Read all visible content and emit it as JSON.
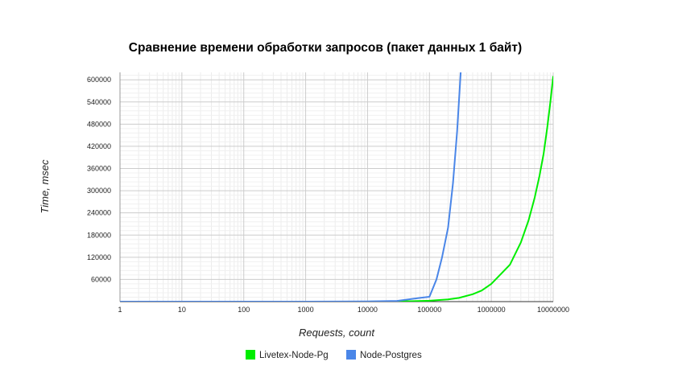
{
  "chart_data": {
    "type": "line",
    "title": "Сравнение времени обработки запросов (пакет данных 1 байт)",
    "xlabel": "Requests, count",
    "ylabel": "Time, msec",
    "x_scale": "log",
    "xlim": [
      1,
      10000000
    ],
    "ylim": [
      0,
      620000
    ],
    "x_ticks": [
      "1",
      "10",
      "100",
      "1000",
      "10000",
      "100000",
      "1000000",
      "10000000"
    ],
    "y_ticks": [
      "60000",
      "120000",
      "180000",
      "240000",
      "300000",
      "360000",
      "420000",
      "480000",
      "540000",
      "600000"
    ],
    "grid": true,
    "legend_position": "bottom",
    "series": [
      {
        "name": "Livetex-Node-Pg",
        "color": "#00ee00",
        "points": [
          [
            1,
            0
          ],
          [
            10,
            0
          ],
          [
            100,
            0
          ],
          [
            1000,
            0
          ],
          [
            10000,
            100
          ],
          [
            50000,
            1000
          ],
          [
            100000,
            2500
          ],
          [
            200000,
            6000
          ],
          [
            300000,
            10000
          ],
          [
            500000,
            20000
          ],
          [
            700000,
            30000
          ],
          [
            1000000,
            48000
          ],
          [
            2000000,
            100000
          ],
          [
            3000000,
            160000
          ],
          [
            4000000,
            220000
          ],
          [
            5000000,
            280000
          ],
          [
            6000000,
            340000
          ],
          [
            7000000,
            400000
          ],
          [
            8000000,
            470000
          ],
          [
            9000000,
            540000
          ],
          [
            10000000,
            610000
          ]
        ]
      },
      {
        "name": "Node-Postgres",
        "color": "#4a86e8",
        "points": [
          [
            1,
            0
          ],
          [
            10,
            0
          ],
          [
            100,
            0
          ],
          [
            1000,
            0
          ],
          [
            10000,
            500
          ],
          [
            30000,
            2000
          ],
          [
            70000,
            10000
          ],
          [
            100000,
            13000
          ],
          [
            130000,
            60000
          ],
          [
            160000,
            120000
          ],
          [
            200000,
            200000
          ],
          [
            240000,
            320000
          ],
          [
            280000,
            460000
          ],
          [
            320000,
            620000
          ]
        ]
      }
    ]
  }
}
